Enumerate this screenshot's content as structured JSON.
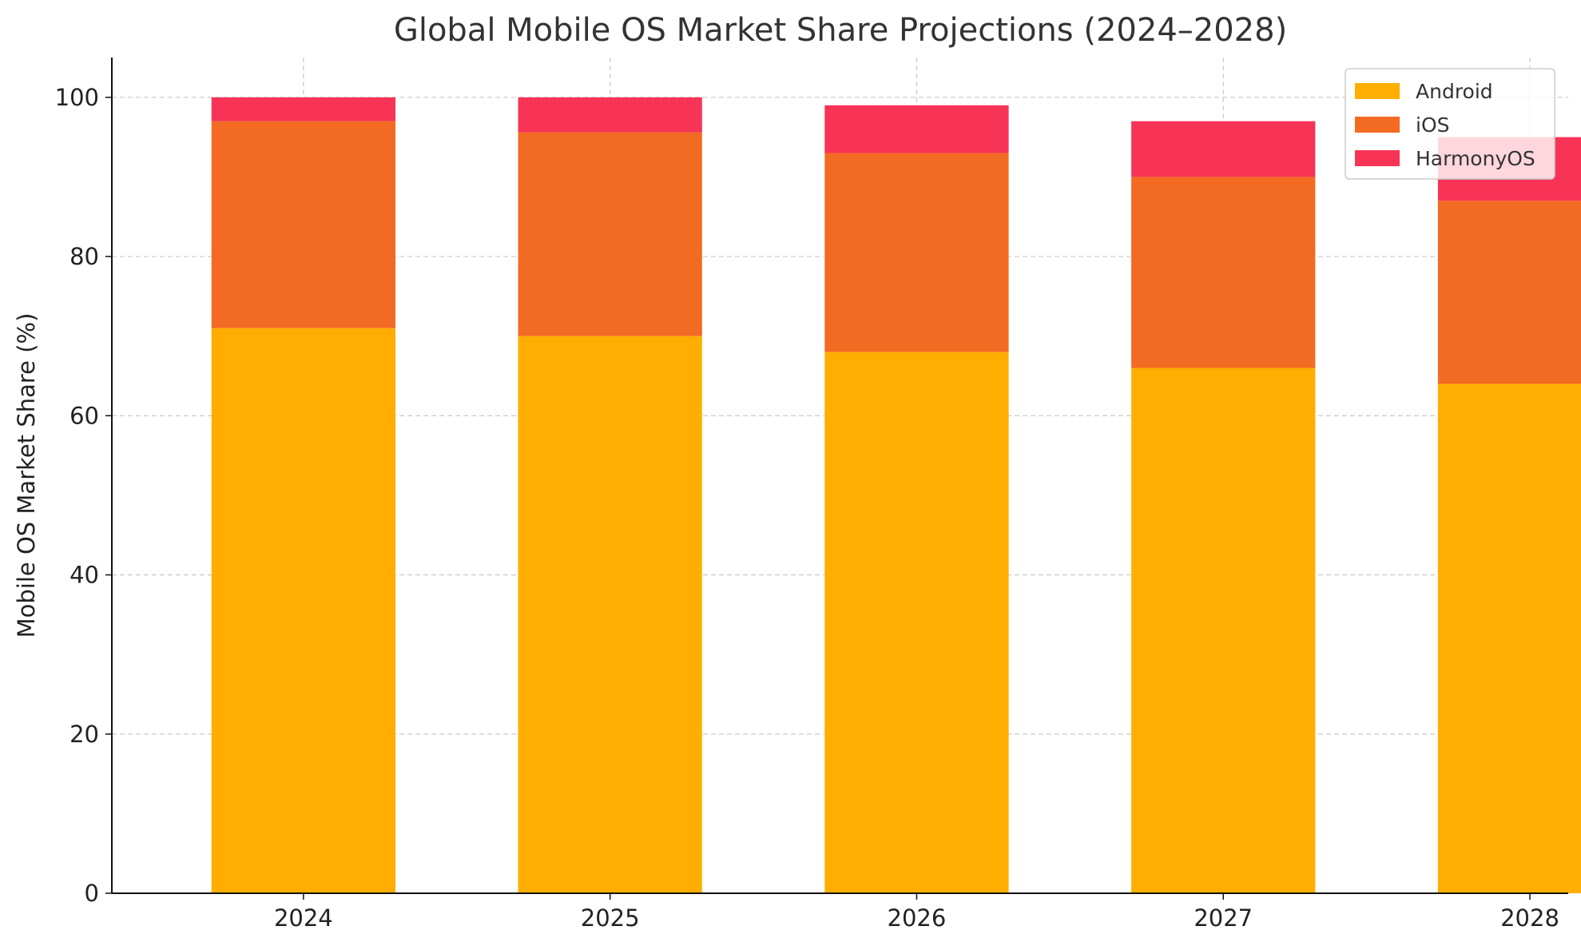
{
  "chart_data": {
    "type": "bar",
    "stacked": true,
    "title": "Global Mobile OS Market Share Projections (2024–2028)",
    "xlabel": "",
    "ylabel": "Mobile OS Market Share (%)",
    "categories": [
      "2024",
      "2025",
      "2026",
      "2027",
      "2028"
    ],
    "series": [
      {
        "name": "Android",
        "color": "#FFAE00",
        "values": [
          71,
          70,
          68,
          66,
          64
        ]
      },
      {
        "name": "iOS",
        "color": "#F36A22",
        "values": [
          26,
          25.6,
          25,
          24,
          23
        ]
      },
      {
        "name": "HarmonyOS",
        "color": "#F73456",
        "values": [
          3,
          4.4,
          6,
          7,
          8
        ]
      }
    ],
    "ylim": [
      0,
      105
    ],
    "yticks": [
      0,
      20,
      40,
      60,
      80,
      100
    ],
    "grid": true,
    "legend_position": "top-right"
  }
}
